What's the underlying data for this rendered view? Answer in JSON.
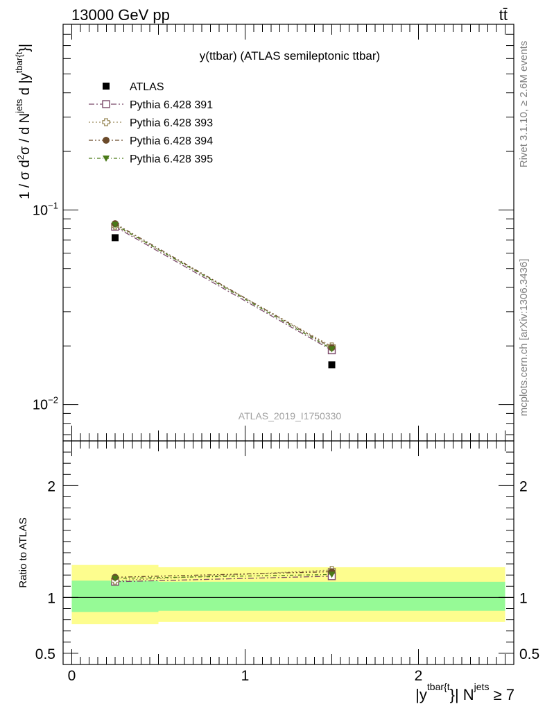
{
  "header": {
    "energy_label": "13000 GeV pp",
    "process_label": "tt̄"
  },
  "side_labels": {
    "rivet": "Rivet 3.1.10, ≥ 2.6M events",
    "source": "mcplots.cern.ch [arXiv:1306.3436]"
  },
  "analysis_id": "ATLAS_2019_I1750330",
  "chart_data": [
    {
      "type": "line",
      "title": "y(ttbar) (ATLAS semileptonic ttbar)",
      "ylabel": {
        "main": "1 / σ d",
        "sup1": "2",
        "mid": "σ / d N",
        "sup2": "jets",
        "tail": " d |y",
        "sup3": "tbar{t",
        "end": "}|"
      },
      "yscale": "log",
      "ylim": [
        0.0065,
        0.9
      ],
      "xlim": [
        -0.05,
        2.55
      ],
      "yticks": [
        {
          "value": 0.1,
          "base": "10",
          "exp": "−1"
        },
        {
          "value": 0.01,
          "base": "10",
          "exp": "−2"
        }
      ],
      "x": [
        0.25,
        1.5
      ],
      "series": [
        {
          "name": "ATLAS",
          "marker": "square-filled",
          "color": "#000000",
          "values": [
            0.072,
            0.016
          ]
        },
        {
          "name": "Pythia 6.428 391",
          "marker": "square-open",
          "color": "#7b4a6a",
          "values": [
            0.082,
            0.019
          ]
        },
        {
          "name": "Pythia 6.428 393",
          "marker": "cross-open",
          "color": "#9a8a5a",
          "values": [
            0.083,
            0.0199
          ]
        },
        {
          "name": "Pythia 6.428 394",
          "marker": "circle-filled",
          "color": "#6b4a2a",
          "values": [
            0.085,
            0.0196
          ]
        },
        {
          "name": "Pythia 6.428 395",
          "marker": "triangle-down-filled",
          "color": "#4a7a18",
          "values": [
            0.084,
            0.0193
          ]
        }
      ],
      "legend_position": "top-left"
    },
    {
      "type": "line",
      "ylabel": "Ratio to ATLAS",
      "xlabel": {
        "pre": "|y",
        "sup1": "tbar{t",
        "mid": "}| N",
        "sup2": "jets",
        "post": " ≥ 7"
      },
      "ylim": [
        0.4,
        2.4
      ],
      "xlim": [
        -0.05,
        2.55
      ],
      "yticks": [
        0.5,
        1,
        2
      ],
      "xticks": [
        0,
        1,
        2
      ],
      "bands": [
        {
          "x0": 0.0,
          "x1": 0.5,
          "yellow": [
            0.76,
            1.29
          ],
          "green": [
            0.87,
            1.15
          ]
        },
        {
          "x0": 0.5,
          "x1": 2.5,
          "yellow": [
            0.78,
            1.27
          ],
          "green": [
            0.88,
            1.14
          ]
        }
      ],
      "x": [
        0.25,
        1.5
      ],
      "series": [
        {
          "name": "Pythia 6.428 391",
          "values": [
            1.14,
            1.19
          ]
        },
        {
          "name": "Pythia 6.428 393",
          "values": [
            1.15,
            1.245
          ]
        },
        {
          "name": "Pythia 6.428 394",
          "values": [
            1.18,
            1.23
          ]
        },
        {
          "name": "Pythia 6.428 395",
          "values": [
            1.17,
            1.205
          ]
        }
      ]
    }
  ]
}
